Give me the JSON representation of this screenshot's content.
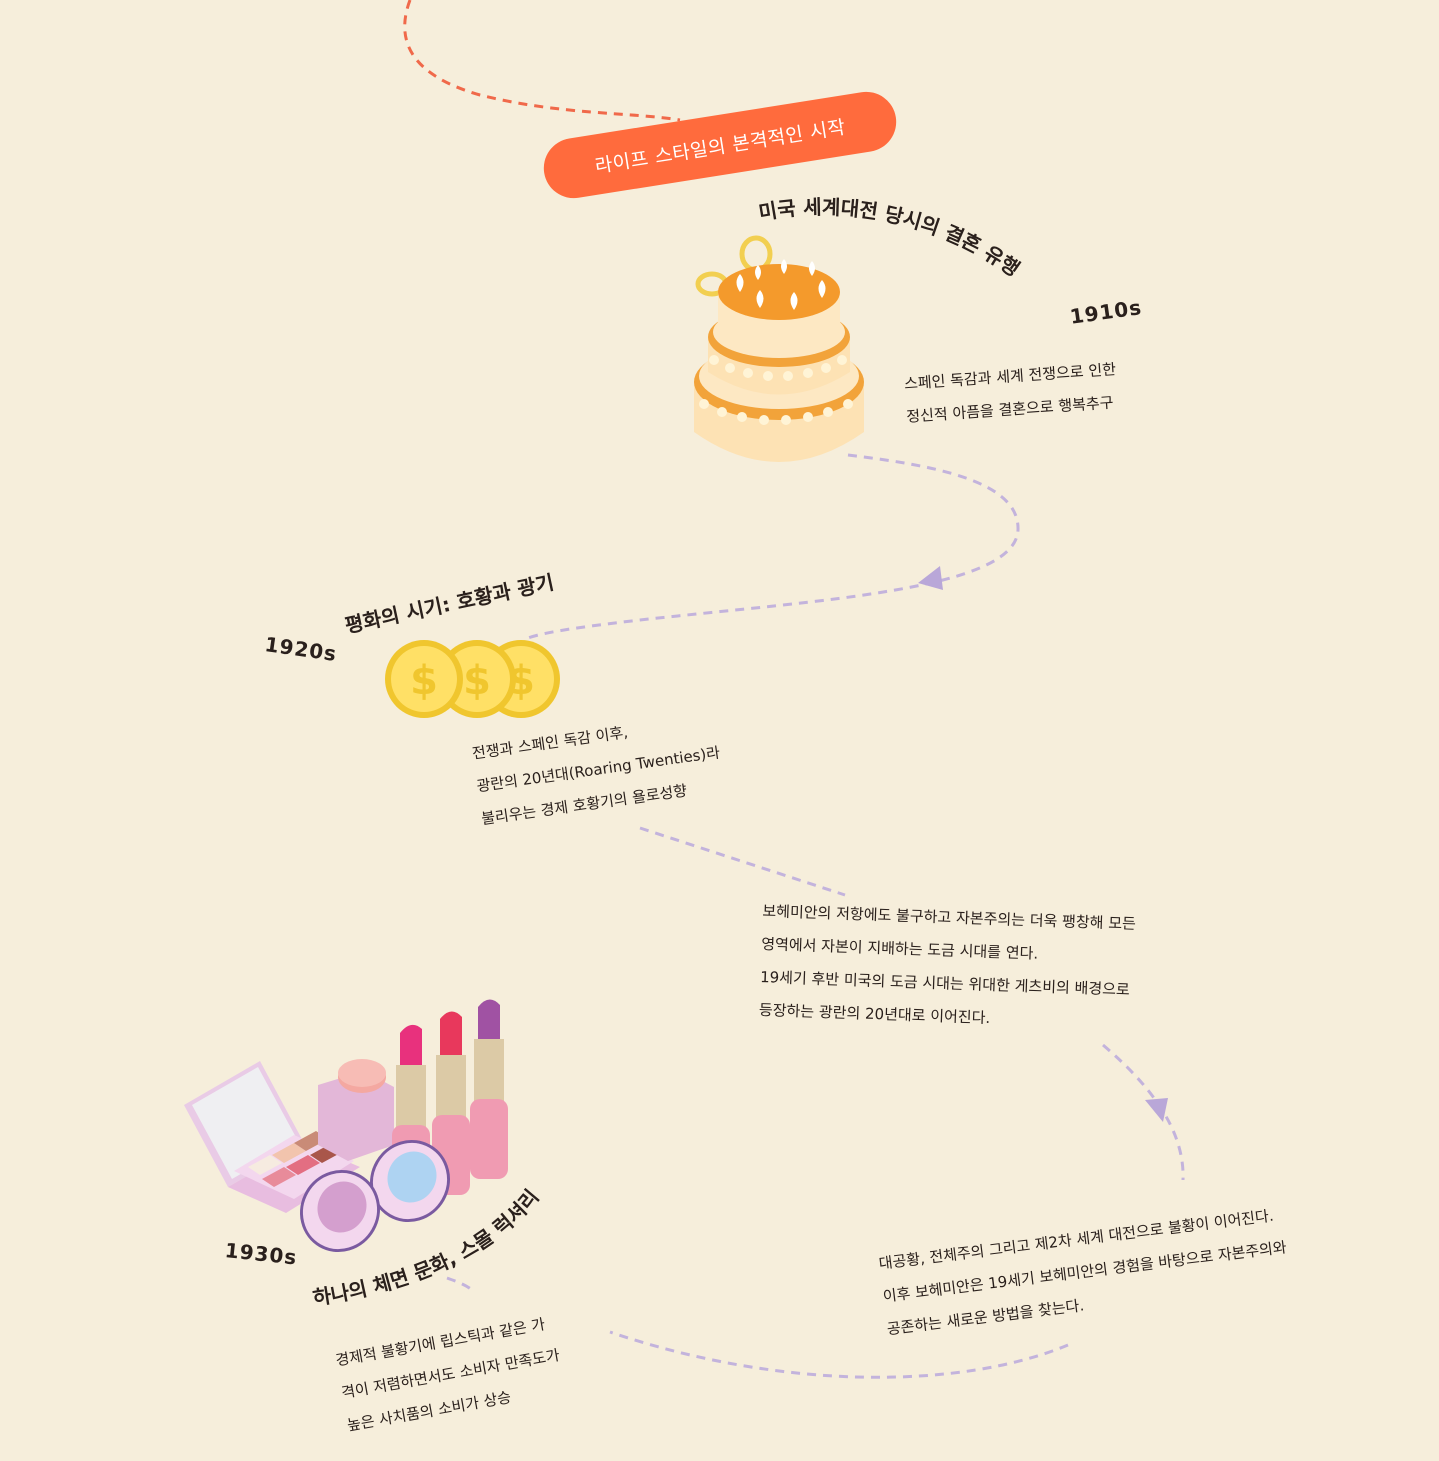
{
  "banner": {
    "label": "라이프 스타일의 본격적인 시작"
  },
  "section_1910": {
    "title": "미국 세계대전 당시의 결혼 유행",
    "year": "1910s",
    "lines": [
      "스페인 독감과 세계 전쟁으로 인한",
      "정신적 아픔을 결혼으로 행복추구"
    ]
  },
  "section_1920": {
    "title": "평화의 시기: 호황과 광기",
    "year": "1920s",
    "lines": [
      "전쟁과 스페인 독감 이후,",
      "광란의 20년대(Roaring Twenties)라",
      "불리우는 경제 호황기의 욜로성향"
    ]
  },
  "gilded": {
    "lines": [
      "보헤미안의 저항에도 불구하고 자본주의는 더욱 팽창해 모든",
      "영역에서 자본이 지배하는 도금 시대를 연다.",
      "19세기 후반 미국의 도금 시대는 위대한 게츠비의 배경으로",
      "등장하는 광란의 20년대로 이어진다."
    ]
  },
  "depression": {
    "lines": [
      "대공황, 전체주의 그리고 제2차 세계 대전으로 불황이 이어진다.",
      "이후 보헤미안은 19세기 보헤미안의 경험을 바탕으로 자본주의와",
      "공존하는 새로운 방법을 찾는다."
    ]
  },
  "section_1930": {
    "title": "하나의 체면 문화, 스몰 럭셔리",
    "year": "1930s",
    "lines": [
      "경제적 불황기에 립스틱과 같은 가",
      "격이 저렴하면서도 소비자 만족도가",
      "높은 사치품의 소비가 상승"
    ]
  },
  "colors": {
    "accent": "#ff6b3d",
    "path_orange": "#f0694a",
    "path_purple": "#c3b3dc",
    "background": "#f6eedb"
  },
  "icons": {
    "cake": "wedding-cake-icon",
    "coins": "dollar-coins-icon",
    "cosmetics": "cosmetics-icon"
  }
}
